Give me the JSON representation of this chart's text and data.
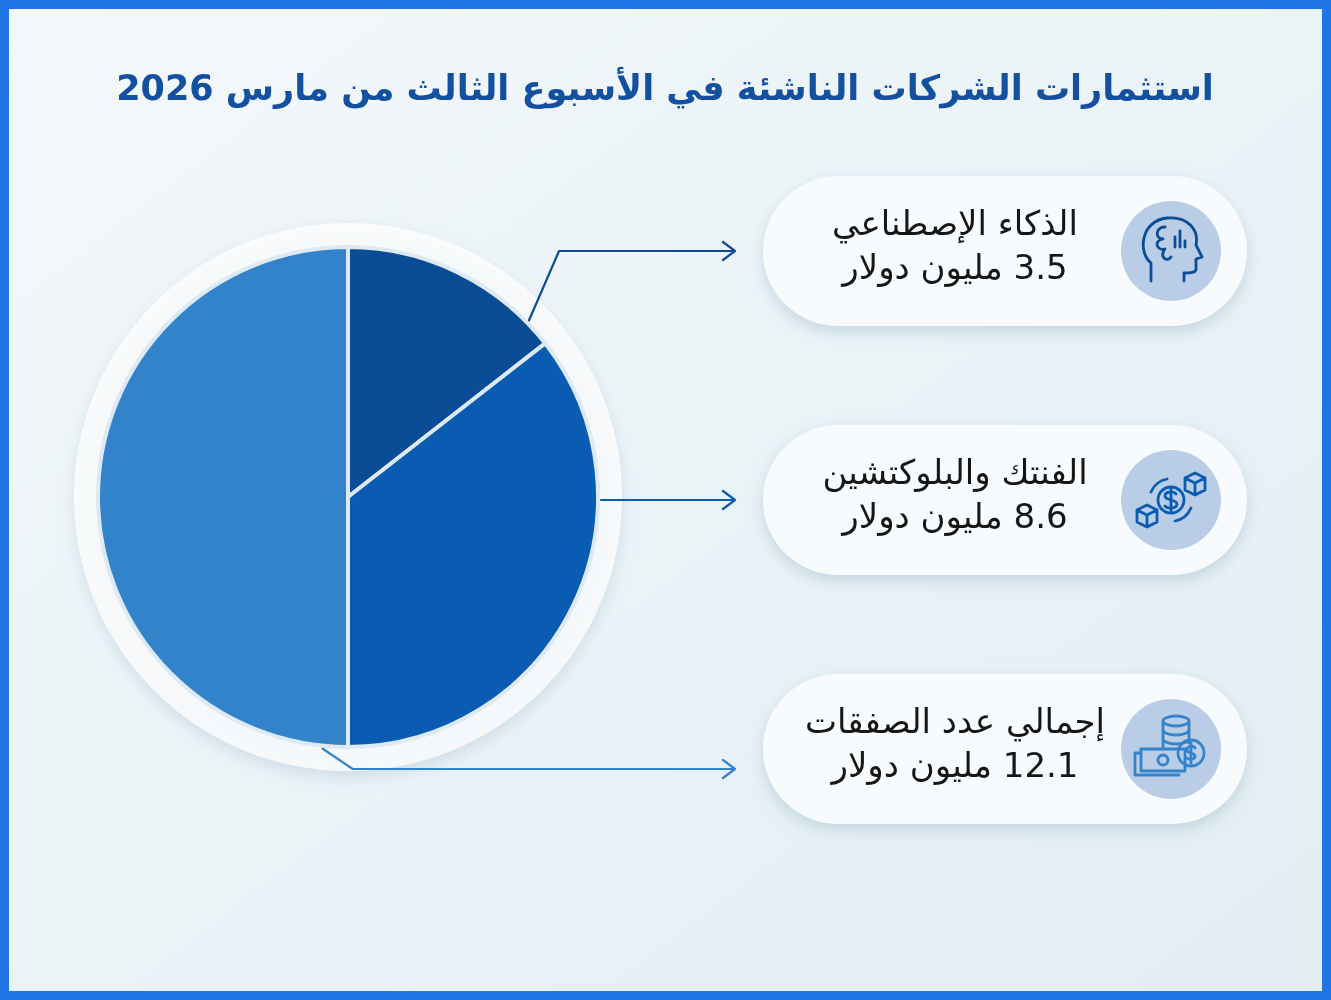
{
  "chart_data": {
    "type": "pie",
    "title": "استثمارات الشركات الناشئة في الأسبوع الثالث من مارس 2026",
    "categories": [
      "الذكاء الإصطناعي",
      "الفنتك والبلوكتشين",
      "إجمالي عدد الصفقات"
    ],
    "values": [
      3.5,
      8.6,
      12.1
    ],
    "colors": [
      "#0b4c97",
      "#0a5cb3",
      "#3283c9"
    ],
    "value_labels": [
      "3.5 مليون دولار",
      "8.6 مليون دولار",
      "12.1 مليون دولار"
    ],
    "legend": "right"
  }
}
